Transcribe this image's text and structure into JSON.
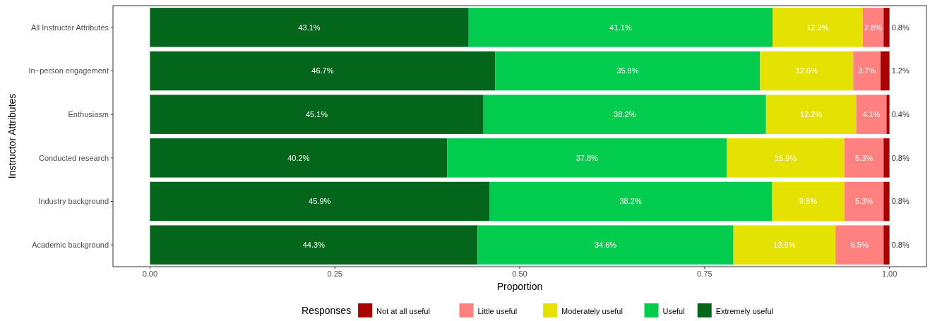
{
  "chart_data": {
    "type": "bar",
    "orientation": "horizontal",
    "stacked": true,
    "xlabel": "Proportion",
    "ylabel": "Instructor Attributes",
    "legend_title": "Responses",
    "legend": "bottom",
    "categories": [
      "All Instructor Attributes",
      "In−person engagement",
      "Enthusiasm",
      "Conducted research",
      "Industry background",
      "Academic background"
    ],
    "xlim": [
      -0.05,
      1.05
    ],
    "xticks": [
      {
        "value": 0,
        "label": "0.00"
      },
      {
        "value": 0.25,
        "label": "0.25"
      },
      {
        "value": 0.5,
        "label": "0.50"
      },
      {
        "value": 0.75,
        "label": "0.75"
      },
      {
        "value": 1,
        "label": "1.00"
      }
    ],
    "series": [
      {
        "name": "Extremely useful",
        "color": "#03661b",
        "values": [
          0.431,
          0.467,
          0.451,
          0.402,
          0.459,
          0.443
        ],
        "value_labels": [
          "43.1%",
          "46.7%",
          "45.1%",
          "40.2%",
          "45.9%",
          "44.3%"
        ]
      },
      {
        "name": "Useful",
        "color": "#02cc4d",
        "values": [
          0.411,
          0.358,
          0.382,
          0.378,
          0.382,
          0.346
        ],
        "value_labels": [
          "41.1%",
          "35.8%",
          "38.2%",
          "37.8%",
          "38.2%",
          "34.6%"
        ]
      },
      {
        "name": "Moderately useful",
        "color": "#e5e100",
        "values": [
          0.122,
          0.126,
          0.122,
          0.159,
          0.098,
          0.138
        ],
        "value_labels": [
          "12.2%",
          "12.6%",
          "12.2%",
          "15.9%",
          "9.8%",
          "13.8%"
        ]
      },
      {
        "name": "Little useful",
        "color": "#fe8180",
        "values": [
          0.028,
          0.037,
          0.041,
          0.053,
          0.053,
          0.065
        ],
        "value_labels": [
          "2.8%",
          "3.7%",
          "4.1%",
          "5.3%",
          "5.3%",
          "6.5%"
        ]
      },
      {
        "name": "Not at all useful",
        "color": "#a90000",
        "values": [
          0.008,
          0.012,
          0.004,
          0.008,
          0.008,
          0.008
        ],
        "value_labels": [
          "0.8%",
          "1.2%",
          "0.4%",
          "0.8%",
          "0.8%",
          "0.8%"
        ]
      }
    ]
  }
}
